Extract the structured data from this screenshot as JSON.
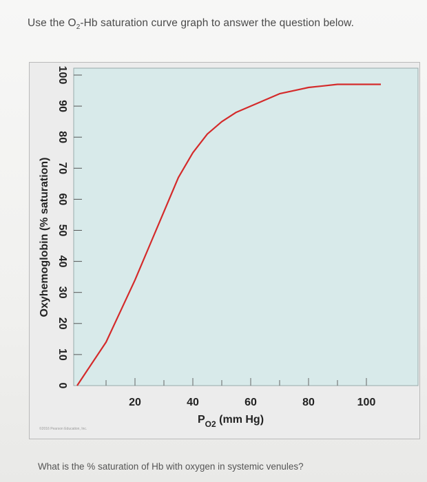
{
  "prompt": {
    "before": "Use the O",
    "sub": "2",
    "after": "-Hb saturation curve graph to answer the question below."
  },
  "question": "What is the % saturation of Hb with oxygen in systemic venules?",
  "copyright": "©2016 Pearson Education, Inc.",
  "colors": {
    "plot_bg": "#d8eaea",
    "curve": "#d42a2a",
    "frame": "#b9b9b9"
  },
  "chart_data": {
    "type": "line",
    "title": "",
    "xlabel": {
      "main": "P",
      "sub": "O2",
      "units": " (mm Hg)"
    },
    "ylabel": "Oxyhemoglobin (% saturation)",
    "xlim": [
      0,
      100
    ],
    "ylim": [
      0,
      100
    ],
    "x_ticks": [
      20,
      40,
      60,
      80,
      100
    ],
    "x_tick_labels": [
      "20",
      "40",
      "60",
      "80",
      "100"
    ],
    "y_ticks": [
      0,
      10,
      20,
      30,
      40,
      50,
      60,
      70,
      80,
      90,
      100
    ],
    "y_tick_labels": [
      "0",
      "10",
      "20",
      "30",
      "40",
      "50",
      "60",
      "70",
      "80",
      "90",
      "100"
    ],
    "grid": false,
    "series": [
      {
        "x": [
          0,
          5,
          10,
          15,
          20,
          25,
          30,
          35,
          40,
          45,
          50,
          55,
          60,
          65,
          70,
          75,
          80,
          85,
          90,
          95,
          100,
          105
        ],
        "y": [
          0,
          7,
          14,
          24,
          34,
          45,
          56,
          67,
          75,
          81,
          85,
          88,
          90,
          92,
          94,
          95,
          96,
          96.5,
          97,
          97,
          97,
          97
        ]
      }
    ]
  }
}
